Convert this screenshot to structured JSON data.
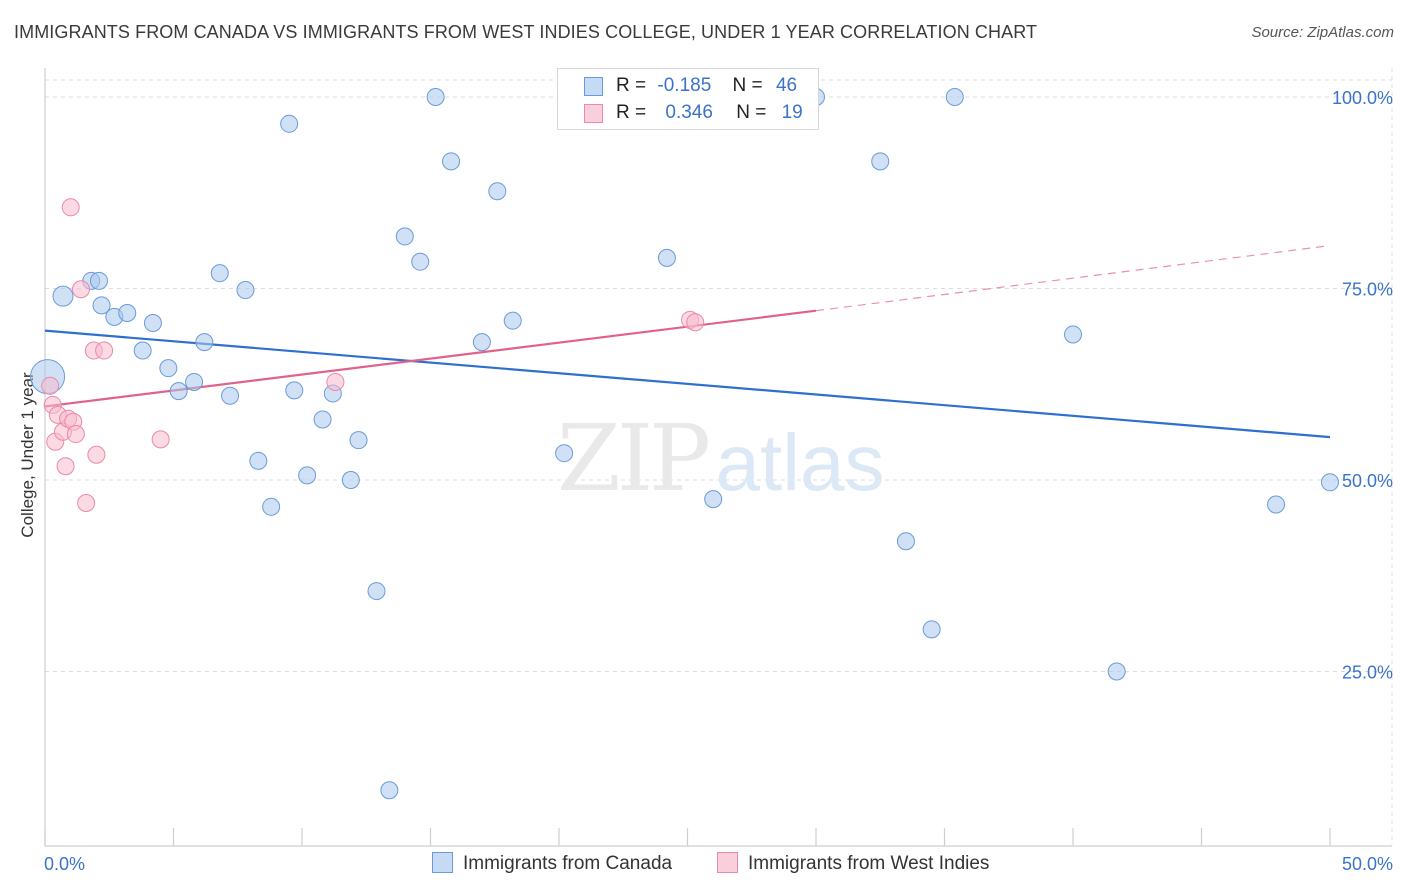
{
  "title": "IMMIGRANTS FROM CANADA VS IMMIGRANTS FROM WEST INDIES COLLEGE, UNDER 1 YEAR CORRELATION CHART",
  "source": "Source: ZipAtlas.com",
  "watermark": {
    "zip": "ZIP",
    "atlas": "atlas"
  },
  "legend": {
    "r_label": "R =",
    "n_label": "N =",
    "series": [
      {
        "r": "-0.185",
        "n": "46"
      },
      {
        "r": "0.346",
        "n": "19"
      }
    ]
  },
  "colors": {
    "canada_fill": "#aac8ef",
    "canada_stroke": "#6a9bd8",
    "canada_line": "#2f6fcf",
    "westindies_fill": "#f7bccd",
    "westindies_stroke": "#e98aa8",
    "westindies_line": "#e0628c",
    "axis_text": "#3a73c9",
    "grid": "#dddddd"
  },
  "chart_data": {
    "type": "scatter",
    "title": "IMMIGRANTS FROM CANADA VS IMMIGRANTS FROM WEST INDIES COLLEGE, UNDER 1 YEAR CORRELATION CHART",
    "xlabel": "",
    "ylabel": "College, Under 1 year",
    "xlim": [
      0,
      50
    ],
    "ylim": [
      4,
      104
    ],
    "x_tick_labels": [
      "0.0%",
      "50.0%"
    ],
    "y_ticks": [
      100,
      75,
      50,
      25
    ],
    "y_tick_labels": [
      "100.0%",
      "75.0%",
      "50.0%",
      "25.0%"
    ],
    "series": [
      {
        "name": "Immigrants from Canada",
        "points": [
          [
            0.1,
            63.5
          ],
          [
            0.7,
            74.0
          ],
          [
            1.8,
            76.0
          ],
          [
            2.2,
            72.8
          ],
          [
            2.7,
            71.3
          ],
          [
            3.2,
            71.8
          ],
          [
            3.8,
            66.9
          ],
          [
            4.2,
            70.5
          ],
          [
            4.8,
            64.6
          ],
          [
            5.2,
            61.6
          ],
          [
            5.8,
            62.8
          ],
          [
            6.2,
            68.0
          ],
          [
            6.8,
            77.0
          ],
          [
            7.2,
            61.0
          ],
          [
            7.8,
            74.8
          ],
          [
            8.3,
            52.5
          ],
          [
            8.8,
            46.5
          ],
          [
            9.5,
            96.5
          ],
          [
            9.7,
            61.7
          ],
          [
            10.2,
            50.6
          ],
          [
            10.8,
            57.9
          ],
          [
            11.2,
            61.3
          ],
          [
            11.9,
            50.0
          ],
          [
            12.2,
            55.2
          ],
          [
            12.9,
            35.5
          ],
          [
            13.4,
            9.5
          ],
          [
            14.0,
            81.8
          ],
          [
            14.6,
            78.5
          ],
          [
            15.2,
            100.0
          ],
          [
            15.8,
            91.6
          ],
          [
            17.0,
            68.0
          ],
          [
            17.6,
            87.7
          ],
          [
            18.2,
            70.8
          ],
          [
            20.2,
            53.5
          ],
          [
            24.2,
            79.0
          ],
          [
            26.0,
            47.5
          ],
          [
            30.0,
            100.0
          ],
          [
            32.5,
            91.6
          ],
          [
            33.5,
            42.0
          ],
          [
            34.5,
            30.5
          ],
          [
            35.4,
            100.0
          ],
          [
            40.0,
            69.0
          ],
          [
            41.7,
            25.0
          ],
          [
            47.9,
            46.8
          ],
          [
            50.0,
            49.7
          ],
          [
            2.1,
            76.0
          ]
        ]
      },
      {
        "name": "Immigrants from West Indies",
        "points": [
          [
            0.2,
            62.3
          ],
          [
            0.3,
            59.8
          ],
          [
            0.4,
            55.0
          ],
          [
            0.5,
            58.5
          ],
          [
            0.7,
            56.3
          ],
          [
            0.8,
            51.8
          ],
          [
            0.9,
            58.0
          ],
          [
            1.0,
            85.6
          ],
          [
            1.1,
            57.6
          ],
          [
            1.2,
            56.0
          ],
          [
            1.4,
            74.9
          ],
          [
            1.6,
            47.0
          ],
          [
            1.9,
            66.9
          ],
          [
            2.0,
            53.3
          ],
          [
            2.3,
            66.9
          ],
          [
            4.5,
            55.3
          ],
          [
            11.3,
            62.8
          ],
          [
            25.1,
            70.9
          ],
          [
            25.3,
            70.6
          ]
        ]
      }
    ],
    "trendlines": [
      {
        "name": "Immigrants from Canada",
        "x": [
          0,
          50
        ],
        "y": [
          69.5,
          55.6
        ]
      },
      {
        "name": "Immigrants from West Indies",
        "solid_x": [
          0,
          30
        ],
        "solid_y": [
          59.6,
          72.1
        ],
        "dashed_x": [
          30,
          50
        ],
        "dashed_y": [
          72.1,
          80.6
        ]
      }
    ]
  }
}
